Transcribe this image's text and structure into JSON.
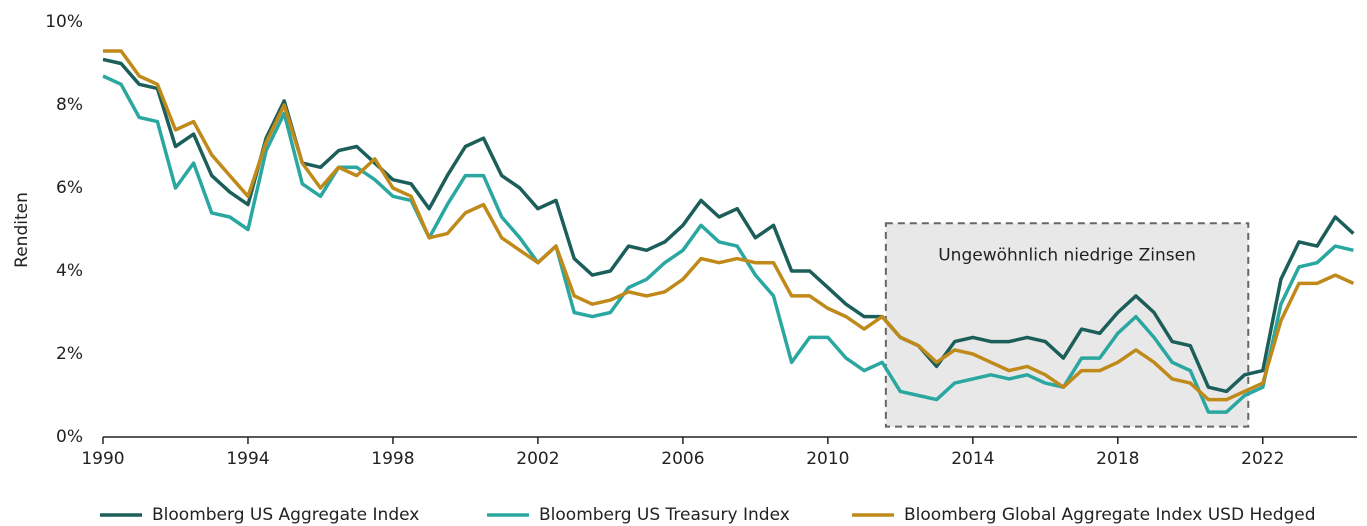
{
  "chart_data": {
    "type": "line",
    "y_label": "Renditen",
    "x": [
      1990,
      1990.5,
      1991,
      1991.5,
      1992,
      1992.5,
      1993,
      1993.5,
      1994,
      1994.5,
      1995,
      1995.5,
      1996,
      1996.5,
      1997,
      1997.5,
      1998,
      1998.5,
      1999,
      1999.5,
      2000,
      2000.5,
      2001,
      2001.5,
      2002,
      2002.5,
      2003,
      2003.5,
      2004,
      2004.5,
      2005,
      2005.5,
      2006,
      2006.5,
      2007,
      2007.5,
      2008,
      2008.5,
      2009,
      2009.5,
      2010,
      2010.5,
      2011,
      2011.5,
      2012,
      2012.5,
      2013,
      2013.5,
      2014,
      2014.5,
      2015,
      2015.5,
      2016,
      2016.5,
      2017,
      2017.5,
      2018,
      2018.5,
      2019,
      2019.5,
      2020,
      2020.5,
      2021,
      2021.5,
      2022,
      2022.5,
      2023,
      2023.5,
      2024,
      2024.5
    ],
    "series": [
      {
        "name": "Bloomberg US Aggregate Index",
        "color": "#1b5e5a",
        "values": [
          9.1,
          9.0,
          8.5,
          8.4,
          7.0,
          7.3,
          6.3,
          5.9,
          5.6,
          7.2,
          8.1,
          6.6,
          6.5,
          6.9,
          7.0,
          6.6,
          6.2,
          6.1,
          5.5,
          6.3,
          7.0,
          7.2,
          6.3,
          6.0,
          5.5,
          5.7,
          4.3,
          3.9,
          4.0,
          4.6,
          4.5,
          4.7,
          5.1,
          5.7,
          5.3,
          5.5,
          4.8,
          5.1,
          4.0,
          4.0,
          3.6,
          3.2,
          2.9,
          2.9,
          2.4,
          2.2,
          1.7,
          2.3,
          2.4,
          2.3,
          2.3,
          2.4,
          2.3,
          1.9,
          2.6,
          2.5,
          3.0,
          3.4,
          3.0,
          2.3,
          2.2,
          1.2,
          1.1,
          1.5,
          1.6,
          3.8,
          4.7,
          4.6,
          5.3,
          4.9
        ]
      },
      {
        "name": "Bloomberg US Treasury Index",
        "color": "#2aa7a0",
        "values": [
          8.7,
          8.5,
          7.7,
          7.6,
          6.0,
          6.6,
          5.4,
          5.3,
          5.0,
          6.9,
          7.8,
          6.1,
          5.8,
          6.5,
          6.5,
          6.2,
          5.8,
          5.7,
          4.8,
          5.6,
          6.3,
          6.3,
          5.3,
          4.8,
          4.2,
          4.6,
          3.0,
          2.9,
          3.0,
          3.6,
          3.8,
          4.2,
          4.5,
          5.1,
          4.7,
          4.6,
          3.9,
          3.4,
          1.8,
          2.4,
          2.4,
          1.9,
          1.6,
          1.8,
          1.1,
          1.0,
          0.9,
          1.3,
          1.4,
          1.5,
          1.4,
          1.5,
          1.3,
          1.2,
          1.9,
          1.9,
          2.5,
          2.9,
          2.4,
          1.8,
          1.6,
          0.6,
          0.6,
          1.0,
          1.2,
          3.2,
          4.1,
          4.2,
          4.6,
          4.5
        ]
      },
      {
        "name": "Bloomberg Global Aggregate Index USD Hedged",
        "color": "#c08a1a",
        "values": [
          9.3,
          9.3,
          8.7,
          8.5,
          7.4,
          7.6,
          6.8,
          6.3,
          5.8,
          7.1,
          8.0,
          6.6,
          6.0,
          6.5,
          6.3,
          6.7,
          6.0,
          5.8,
          4.8,
          4.9,
          5.4,
          5.6,
          4.8,
          4.5,
          4.2,
          4.6,
          3.4,
          3.2,
          3.3,
          3.5,
          3.4,
          3.5,
          3.8,
          4.3,
          4.2,
          4.3,
          4.2,
          4.2,
          3.4,
          3.4,
          3.1,
          2.9,
          2.6,
          2.9,
          2.4,
          2.2,
          1.8,
          2.1,
          2.0,
          1.8,
          1.6,
          1.7,
          1.5,
          1.2,
          1.6,
          1.6,
          1.8,
          2.1,
          1.8,
          1.4,
          1.3,
          0.9,
          0.9,
          1.1,
          1.3,
          2.8,
          3.7,
          3.7,
          3.9,
          3.7
        ]
      }
    ],
    "xlim": [
      1990,
      2024.6
    ],
    "xticks": [
      1990,
      1994,
      1998,
      2002,
      2006,
      2010,
      2014,
      2018,
      2022
    ],
    "ylim": [
      0,
      10
    ],
    "yticks": [
      {
        "value": 0,
        "label": "0%"
      },
      {
        "value": 2,
        "label": "2%"
      },
      {
        "value": 4,
        "label": "4%"
      },
      {
        "value": 6,
        "label": "6%"
      },
      {
        "value": 8,
        "label": "8%"
      },
      {
        "value": 10,
        "label": "10%"
      }
    ],
    "grid": false,
    "legend": "bottom",
    "annotation": {
      "text": "Ungewöhnlich niedrige Zinsen",
      "x": [
        2011.6,
        2021.6
      ],
      "y": [
        0.25,
        5.15
      ]
    }
  }
}
